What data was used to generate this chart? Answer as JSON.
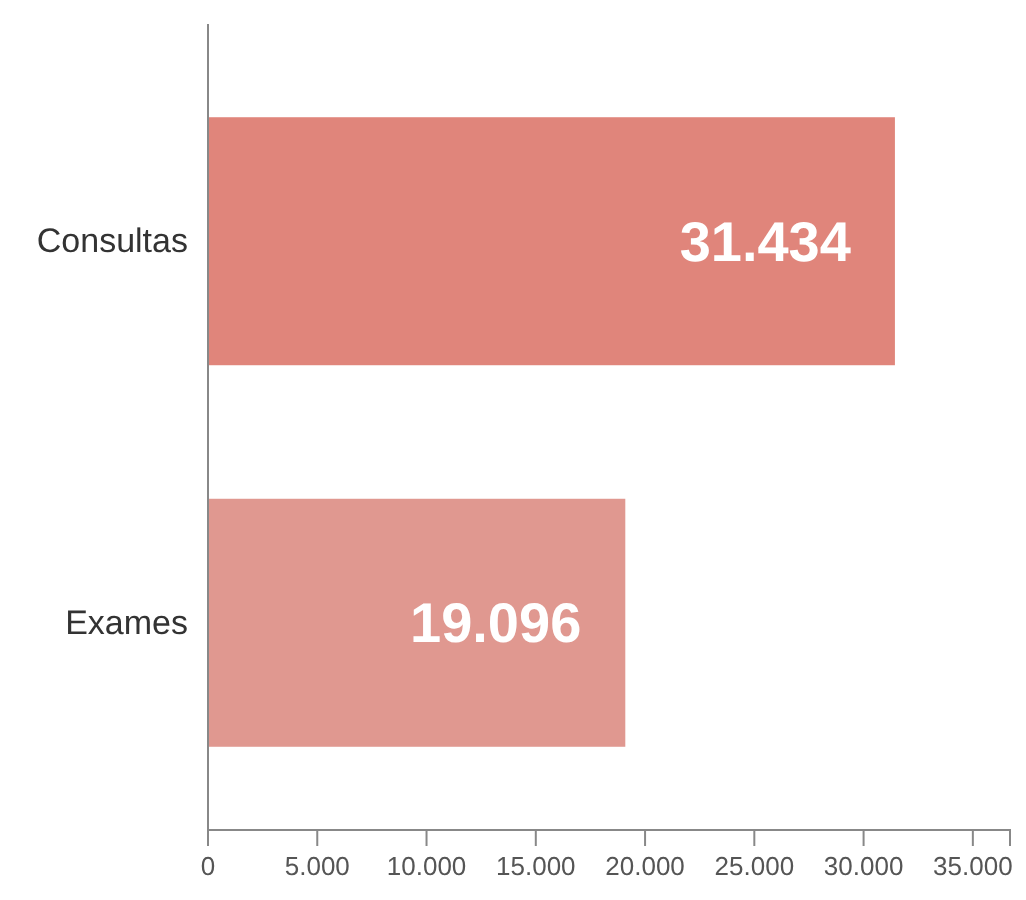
{
  "chart_data": {
    "type": "bar",
    "orientation": "horizontal",
    "categories": [
      "Consultas",
      "Exames"
    ],
    "values": [
      31434,
      19096
    ],
    "colors": [
      "#e0857b",
      "#e09890"
    ],
    "value_labels": [
      "31.434",
      "19.096"
    ],
    "xlim": [
      0,
      36700
    ],
    "xticks": [
      0,
      {
        "value": 5000,
        "label": "5.000"
      },
      {
        "value": 10000,
        "label": "10.000"
      },
      {
        "value": 15000,
        "label": "15.000"
      },
      {
        "value": 20000,
        "label": "20.000"
      },
      {
        "value": 25000,
        "label": "25.000"
      },
      {
        "value": 30000,
        "label": "30.000"
      },
      {
        "value": 35000,
        "label": "35.000"
      }
    ]
  }
}
